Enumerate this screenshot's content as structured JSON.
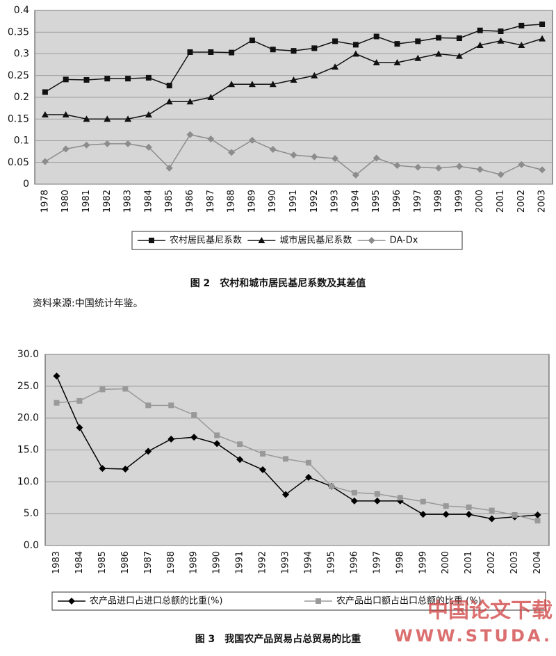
{
  "chart_data": [
    {
      "type": "line",
      "title": "图 2　农村和城市居民基尼系数及其差值",
      "note": "资料来源:中国统计年鉴。",
      "categories": [
        "1978",
        "1980",
        "1981",
        "1982",
        "1983",
        "1984",
        "1985",
        "1986",
        "1987",
        "1988",
        "1989",
        "1990",
        "1991",
        "1992",
        "1993",
        "1994",
        "1995",
        "1996",
        "1997",
        "1998",
        "1999",
        "2000",
        "2001",
        "2002",
        "2003"
      ],
      "series": [
        {
          "name": "农村居民基尼系数",
          "color": "#111111",
          "marker": "square",
          "values": [
            0.212,
            0.241,
            0.24,
            0.243,
            0.243,
            0.245,
            0.227,
            0.304,
            0.304,
            0.303,
            0.331,
            0.31,
            0.307,
            0.313,
            0.329,
            0.321,
            0.34,
            0.323,
            0.329,
            0.337,
            0.336,
            0.354,
            0.352,
            0.365,
            0.368
          ]
        },
        {
          "name": "城市居民基尼系数",
          "color": "#111111",
          "marker": "triangle",
          "values": [
            0.16,
            0.16,
            0.15,
            0.15,
            0.15,
            0.16,
            0.19,
            0.19,
            0.2,
            0.23,
            0.23,
            0.23,
            0.24,
            0.25,
            0.27,
            0.3,
            0.28,
            0.28,
            0.29,
            0.3,
            0.295,
            0.32,
            0.33,
            0.32,
            0.335
          ]
        },
        {
          "name": "DA-Dx",
          "color": "#8c8c8c",
          "marker": "diamond",
          "values": [
            0.052,
            0.081,
            0.09,
            0.093,
            0.093,
            0.085,
            0.037,
            0.114,
            0.104,
            0.073,
            0.101,
            0.08,
            0.067,
            0.063,
            0.059,
            0.021,
            0.06,
            0.043,
            0.039,
            0.037,
            0.041,
            0.034,
            0.022,
            0.045,
            0.033
          ]
        }
      ],
      "ylim": [
        0,
        0.4
      ],
      "yticks": [
        0,
        0.05,
        0.1,
        0.15,
        0.2,
        0.25,
        0.3,
        0.35,
        0.4
      ],
      "grid": true,
      "legend": "bottom"
    },
    {
      "type": "line",
      "title": "图 3　我国农产品贸易占总贸易的比重",
      "watermark": [
        "中国论文下载",
        "WWW.STUDA."
      ],
      "categories": [
        "1983",
        "1984",
        "1985",
        "1986",
        "1987",
        "1988",
        "1989",
        "1990",
        "1991",
        "1992",
        "1993",
        "1994",
        "1995",
        "1996",
        "1997",
        "1998",
        "1999",
        "2000",
        "2001",
        "2002",
        "2003",
        "2004"
      ],
      "series": [
        {
          "name": "农产品进口占进口总额的比重(%)",
          "color": "#000000",
          "marker": "diamond",
          "values": [
            26.6,
            18.5,
            12.1,
            12.0,
            14.8,
            16.7,
            17.0,
            16.0,
            13.5,
            11.9,
            8.0,
            10.7,
            9.3,
            7.0,
            7.0,
            7.0,
            4.9,
            4.9,
            4.9,
            4.2,
            4.5,
            4.8
          ]
        },
        {
          "name": "农产品出口额占出口总额的比重 (%)",
          "color": "#999999",
          "marker": "square",
          "values": [
            22.4,
            22.7,
            24.5,
            24.6,
            22.0,
            22.0,
            20.5,
            17.3,
            15.9,
            14.4,
            13.6,
            13.0,
            9.3,
            8.3,
            8.1,
            7.5,
            6.9,
            6.2,
            6.0,
            5.5,
            4.8,
            3.9
          ]
        }
      ],
      "ylim": [
        0,
        30
      ],
      "yticks": [
        {
          "value": 0,
          "label": "0.0"
        },
        {
          "value": 5,
          "label": "5.0"
        },
        {
          "value": 10,
          "label": "10.0"
        },
        {
          "value": 15,
          "label": "15.0"
        },
        {
          "value": 20,
          "label": "20.0"
        },
        {
          "value": 25,
          "label": "25.0"
        },
        {
          "value": 30,
          "label": "30.0"
        }
      ],
      "grid": true,
      "legend": "bottom"
    }
  ]
}
